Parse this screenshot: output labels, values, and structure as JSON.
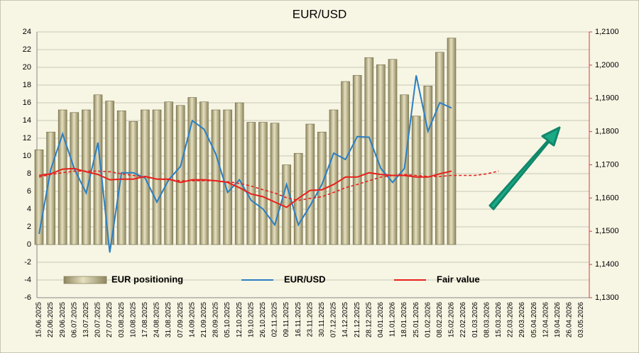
{
  "chart_data": {
    "type": "combo",
    "title": "EUR/USD",
    "categories": [
      "15.06.2025",
      "22.06.2025",
      "29.06.2025",
      "06.07.2025",
      "13.07.2025",
      "20.07.2025",
      "27.07.2025",
      "03.08.2025",
      "10.08.2025",
      "17.08.2025",
      "24.08.2025",
      "31.08.2025",
      "07.09.2025",
      "14.09.2025",
      "21.09.2025",
      "28.09.2025",
      "05.10.2025",
      "12.10.2025",
      "19.10.2025",
      "26.10.2025",
      "02.11.2025",
      "09.11.2025",
      "16.11.2025",
      "23.11.2025",
      "30.11.2025",
      "07.12.2025",
      "14.12.2025",
      "21.12.2025",
      "28.12.2025",
      "04.01.2026",
      "11.01.2026",
      "18.01.2026",
      "25.01.2026",
      "01.02.2026",
      "08.02.2026",
      "15.02.2026",
      "22.02.2026",
      "01.03.2026",
      "08.03.2026",
      "15.03.2026",
      "22.03.2026",
      "29.03.2026",
      "05.04.2026",
      "12.04.2026",
      "19.04.2026",
      "26.04.2026",
      "03.05.2026"
    ],
    "ylim": [
      -6,
      24
    ],
    "yticks": [
      -6,
      -4,
      -2,
      0,
      2,
      4,
      6,
      8,
      10,
      12,
      14,
      16,
      18,
      20,
      22,
      24
    ],
    "y2lim": [
      1.13,
      1.21
    ],
    "y2ticks": [
      {
        "value": 1.13,
        "label": "1,1300"
      },
      {
        "value": 1.14,
        "label": "1,1400"
      },
      {
        "value": 1.15,
        "label": "1,1500"
      },
      {
        "value": 1.16,
        "label": "1,1600"
      },
      {
        "value": 1.17,
        "label": "1,1700"
      },
      {
        "value": 1.18,
        "label": "1,1800"
      },
      {
        "value": 1.19,
        "label": "1,1900"
      },
      {
        "value": 1.2,
        "label": "1,2000"
      },
      {
        "value": 1.21,
        "label": "1,2100"
      }
    ],
    "grid": true,
    "series": [
      {
        "name": "EUR positioning",
        "type": "bar",
        "color": "#c9c19b",
        "values": [
          10.7,
          12.7,
          15.2,
          14.9,
          15.2,
          16.9,
          16.2,
          15.1,
          13.9,
          15.2,
          15.2,
          16.1,
          15.7,
          16.6,
          16.1,
          15.2,
          15.2,
          16.0,
          13.8,
          13.8,
          13.7,
          9.0,
          10.3,
          13.6,
          12.7,
          15.2,
          18.4,
          19.1,
          21.1,
          20.3,
          20.9,
          16.9,
          14.5,
          17.9,
          21.7,
          23.3,
          null,
          null,
          null,
          null,
          null,
          null,
          null,
          null,
          null,
          null,
          null
        ]
      },
      {
        "name": "EUR/USD",
        "type": "line",
        "axis": "y2",
        "color": "#2a7fc4",
        "values": [
          1.1492,
          1.1687,
          1.1793,
          1.1687,
          1.1615,
          1.1767,
          1.1436,
          1.1676,
          1.1676,
          1.166,
          1.1588,
          1.1655,
          1.1695,
          1.1833,
          1.1807,
          1.1732,
          1.1617,
          1.1655,
          1.1593,
          1.1567,
          1.1519,
          1.1641,
          1.1519,
          1.1577,
          1.1641,
          1.1735,
          1.1716,
          1.1785,
          1.1783,
          1.1689,
          1.1647,
          1.1689,
          1.1969,
          1.1801,
          1.1887,
          1.1871,
          null,
          null,
          null,
          null,
          null,
          null,
          null,
          null,
          null,
          null,
          null
        ]
      },
      {
        "name": "Fair value",
        "type": "line",
        "axis": "y2",
        "color": "#e8201c",
        "values": [
          1.1668,
          1.1673,
          1.1687,
          1.1689,
          1.1679,
          1.1671,
          1.1655,
          1.1657,
          1.1657,
          1.1665,
          1.1657,
          1.1657,
          1.1647,
          1.1655,
          1.1655,
          1.1652,
          1.1647,
          1.1631,
          1.1612,
          1.1604,
          1.1588,
          1.1572,
          1.1599,
          1.1623,
          1.1625,
          1.1641,
          1.1663,
          1.1663,
          1.1676,
          1.1671,
          1.1668,
          1.1668,
          1.1663,
          1.1663,
          1.1673,
          1.1681,
          null,
          null,
          null,
          null,
          null,
          null,
          null,
          null,
          null,
          null,
          null
        ]
      },
      {
        "type": "line",
        "axis": "y2",
        "color": "#e8201c",
        "style": "dashed",
        "values": [
          1.1663,
          1.1671,
          1.1676,
          1.1681,
          1.1681,
          1.1681,
          1.1679,
          1.1673,
          1.1668,
          1.1663,
          1.1657,
          1.1655,
          1.1652,
          1.1652,
          1.1652,
          1.1652,
          1.1649,
          1.1644,
          1.1636,
          1.1625,
          1.1615,
          1.1601,
          1.1593,
          1.1599,
          1.1604,
          1.1617,
          1.1631,
          1.1641,
          1.1652,
          1.1663,
          1.1668,
          1.1671,
          1.1668,
          1.1665,
          1.1665,
          1.1668,
          1.1668,
          1.1668,
          1.1673,
          1.1681,
          null,
          null,
          null,
          null,
          null,
          null,
          null
        ]
      }
    ]
  }
}
